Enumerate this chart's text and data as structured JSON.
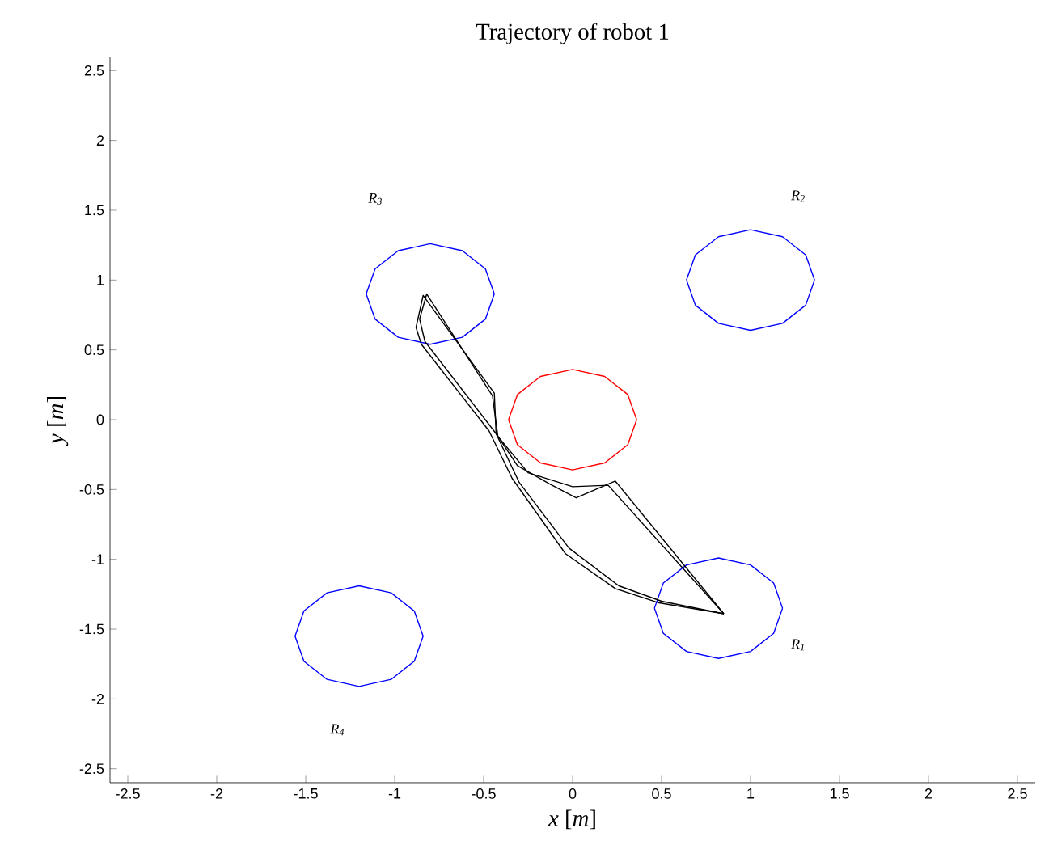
{
  "chart_data": {
    "type": "line",
    "title": "Trajectory of robot 1",
    "xlabel": "*x* [*m*]",
    "ylabel": "*y* [*m*]",
    "xlim": [
      -2.6,
      2.6
    ],
    "ylim": [
      -2.6,
      2.6
    ],
    "xticks": [
      -2.5,
      -2,
      -1.5,
      -1,
      -0.5,
      0,
      0.5,
      1,
      1.5,
      2,
      2.5
    ],
    "yticks": [
      -2.5,
      -2,
      -1.5,
      -1,
      -0.5,
      0,
      0.5,
      1,
      1.5,
      2,
      2.5
    ],
    "grid": false,
    "marker": "none",
    "line_style": "solid",
    "series": [
      {
        "color": "#0000ff",
        "x": [
          1.18,
          1.13,
          1.0,
          0.82,
          0.64,
          0.51,
          0.46
        ],
        "values": [
          -1.35,
          -1.17,
          -1.04,
          -0.99,
          -1.04,
          -1.17,
          -1.35
        ]
      },
      {
        "color": "#0000ff",
        "x": [
          0.46,
          0.51,
          0.64,
          0.82,
          1.0,
          1.13,
          1.18
        ],
        "values": [
          -1.35,
          -1.53,
          -1.66,
          -1.71,
          -1.66,
          -1.53,
          -1.35
        ]
      },
      {
        "color": "#0000ff",
        "x": [
          1.36,
          1.31,
          1.18,
          1,
          0.82,
          0.69,
          0.64
        ],
        "values": [
          1,
          1.18,
          1.31,
          1.36,
          1.31,
          1.18,
          1
        ]
      },
      {
        "color": "#0000ff",
        "x": [
          0.64,
          0.69,
          0.82,
          1,
          1.18,
          1.31,
          1.36
        ],
        "values": [
          1,
          0.82,
          0.69,
          0.64,
          0.69,
          0.82,
          1
        ]
      },
      {
        "color": "#0000ff",
        "x": [
          -0.44,
          -0.49,
          -0.62,
          -0.8,
          -0.98,
          -1.11,
          -1.16
        ],
        "values": [
          0.9,
          1.08,
          1.21,
          1.26,
          1.21,
          1.08,
          0.9
        ]
      },
      {
        "color": "#0000ff",
        "x": [
          -1.16,
          -1.11,
          -0.98,
          -0.8,
          -0.62,
          -0.49,
          -0.44
        ],
        "values": [
          0.9,
          0.72,
          0.59,
          0.54,
          0.59,
          0.72,
          0.9
        ]
      },
      {
        "color": "#0000ff",
        "x": [
          -0.84,
          -0.89,
          -1.02,
          -1.2,
          -1.38,
          -1.51,
          -1.56
        ],
        "values": [
          -1.55,
          -1.37,
          -1.24,
          -1.19,
          -1.24,
          -1.37,
          -1.55
        ]
      },
      {
        "color": "#0000ff",
        "x": [
          -1.56,
          -1.51,
          -1.38,
          -1.2,
          -1.02,
          -0.89,
          -0.84
        ],
        "values": [
          -1.55,
          -1.73,
          -1.86,
          -1.91,
          -1.86,
          -1.73,
          -1.55
        ]
      },
      {
        "color": "#ff0000",
        "x": [
          0.36,
          0.31,
          0.18,
          0,
          -0.18,
          -0.31,
          -0.36
        ],
        "values": [
          0,
          0.18,
          0.31,
          0.36,
          0.31,
          0.18,
          0
        ]
      },
      {
        "color": "#ff0000",
        "x": [
          -0.36,
          -0.31,
          -0.18,
          0,
          0.18,
          0.31,
          0.36
        ],
        "values": [
          0,
          -0.18,
          -0.31,
          -0.36,
          -0.31,
          -0.18,
          0
        ]
      },
      {
        "color": "#000000",
        "x": [
          0.85,
          0.24,
          0.02,
          -0.13,
          -0.31,
          -0.43,
          -0.44,
          -0.84,
          -0.88
        ],
        "values": [
          -1.39,
          -0.44,
          -0.56,
          -0.46,
          -0.33,
          -0.1,
          0.19,
          0.89,
          0.66
        ]
      },
      {
        "color": "#000000",
        "x": [
          -0.88,
          -0.85,
          -0.47,
          -0.34,
          -0.04,
          0.24,
          0.48,
          0.85
        ],
        "values": [
          0.66,
          0.54,
          -0.08,
          -0.42,
          -0.96,
          -1.21,
          -1.31,
          -1.39
        ]
      },
      {
        "color": "#000000",
        "x": [
          0.85,
          0.2,
          0.0,
          -0.25,
          -0.42,
          -0.45,
          -0.82,
          -0.86
        ],
        "values": [
          -1.39,
          -0.47,
          -0.48,
          -0.38,
          -0.12,
          0.17,
          0.9,
          0.72
        ]
      },
      {
        "color": "#000000",
        "x": [
          -0.86,
          -0.83,
          -0.43,
          -0.3,
          -0.02,
          0.26,
          0.5,
          0.85
        ],
        "values": [
          0.72,
          0.56,
          -0.1,
          -0.45,
          -0.92,
          -1.19,
          -1.3,
          -1.39
        ]
      }
    ],
    "annotations": [
      "R$_{1}$",
      "R$_{2}$",
      "R$_{3}$",
      "R$_{4}$"
    ]
  }
}
